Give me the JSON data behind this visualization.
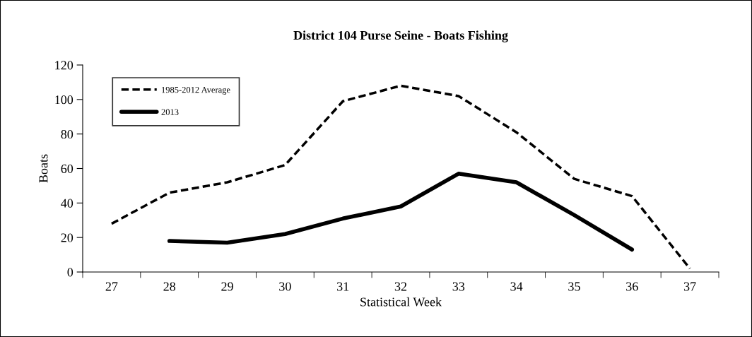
{
  "chart_data": {
    "type": "line",
    "title": "District 104 Purse Seine - Boats Fishing",
    "xlabel": "Statistical Week",
    "ylabel": "Boats",
    "categories": [
      "27",
      "28",
      "29",
      "30",
      "31",
      "32",
      "33",
      "34",
      "35",
      "36",
      "37"
    ],
    "series": [
      {
        "name": "1985-2012 Average",
        "color": "#000000",
        "line_style": "dashed",
        "values": [
          28,
          46,
          52,
          62,
          99,
          108,
          102,
          81,
          54,
          44,
          2
        ]
      },
      {
        "name": "2013",
        "color": "#000000",
        "line_style": "solid",
        "values": [
          null,
          18,
          17,
          22,
          31,
          38,
          57,
          52,
          33,
          13,
          null
        ]
      }
    ],
    "ylim": [
      0,
      120
    ],
    "yticks": [
      0,
      20,
      40,
      60,
      80,
      100,
      120
    ],
    "grid": false,
    "legend": "top left",
    "marker": "none"
  }
}
